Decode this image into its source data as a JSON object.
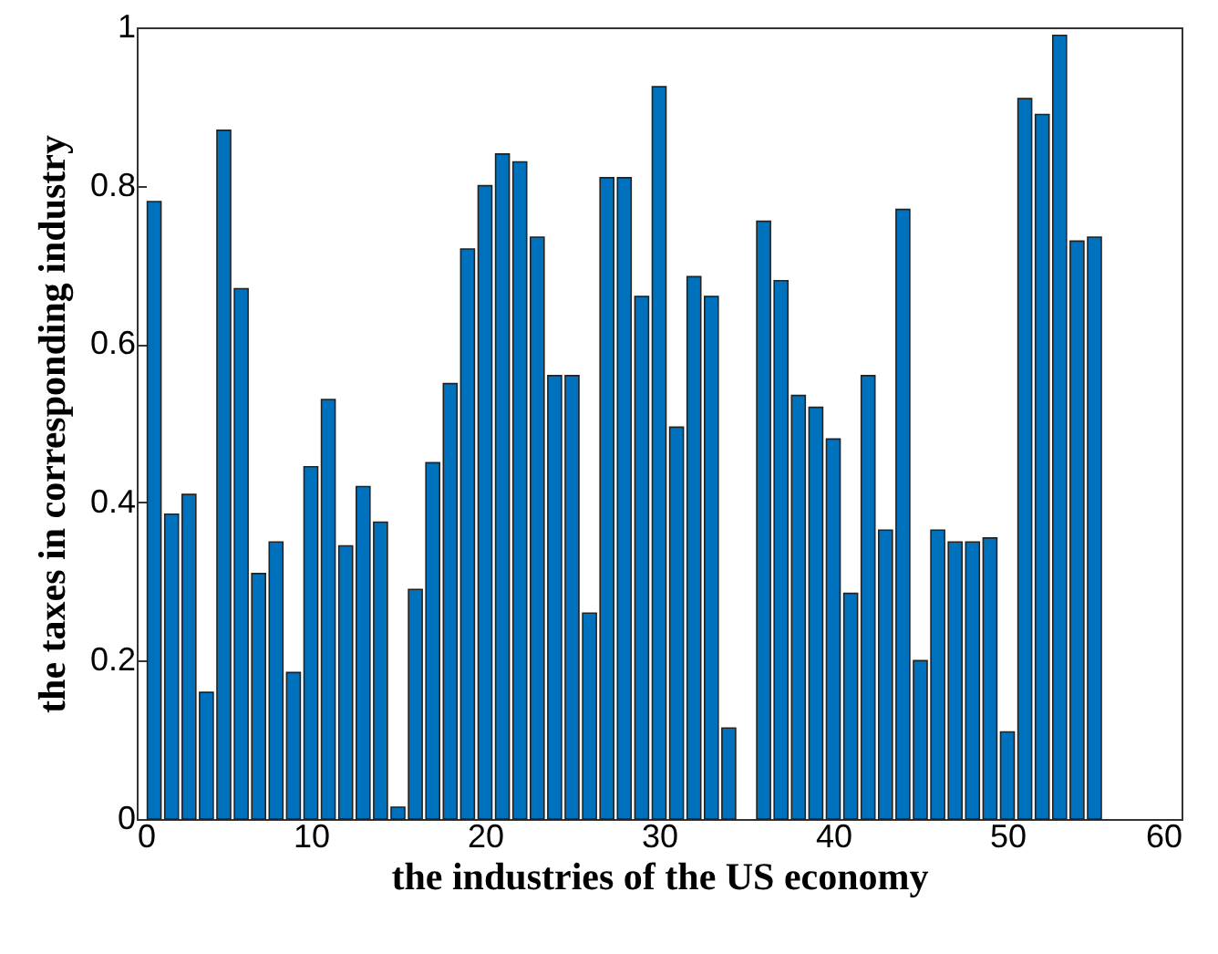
{
  "chart_data": {
    "type": "bar",
    "xlabel": "the industries of the US economy",
    "ylabel": "the taxes in corresponding industry",
    "x": [
      1,
      2,
      3,
      4,
      5,
      6,
      7,
      8,
      9,
      10,
      11,
      12,
      13,
      14,
      15,
      16,
      17,
      18,
      19,
      20,
      21,
      22,
      23,
      24,
      25,
      26,
      27,
      28,
      29,
      30,
      31,
      32,
      33,
      34,
      35,
      36,
      37,
      38,
      39,
      40,
      41,
      42,
      43,
      44,
      45,
      46,
      47,
      48,
      49,
      50,
      51,
      52,
      53,
      54,
      55
    ],
    "values": [
      0.78,
      0.385,
      0.41,
      0.16,
      0.87,
      0.67,
      0.31,
      0.35,
      0.185,
      0.445,
      0.53,
      0.345,
      0.42,
      0.375,
      0.015,
      0.29,
      0.45,
      0.55,
      0.72,
      0.8,
      0.84,
      0.83,
      0.735,
      0.56,
      0.56,
      0.26,
      0.81,
      0.81,
      0.66,
      0.925,
      0.495,
      0.685,
      0.66,
      0.115,
      0,
      0.755,
      0.68,
      0.535,
      0.52,
      0.48,
      0.285,
      0.56,
      0.365,
      0.77,
      0.2,
      0.365,
      0.35,
      0.35,
      0.355,
      0.11,
      0.91,
      0.89,
      0.99,
      0.73,
      0.735
    ],
    "color": "#0072bd",
    "xlim": [
      0,
      60
    ],
    "xticks": [
      0,
      10,
      20,
      30,
      40,
      50,
      60
    ],
    "ylim": [
      0,
      1
    ],
    "yticks": [
      0,
      0.2,
      0.4,
      0.6,
      0.8,
      1
    ],
    "grid": false
  }
}
